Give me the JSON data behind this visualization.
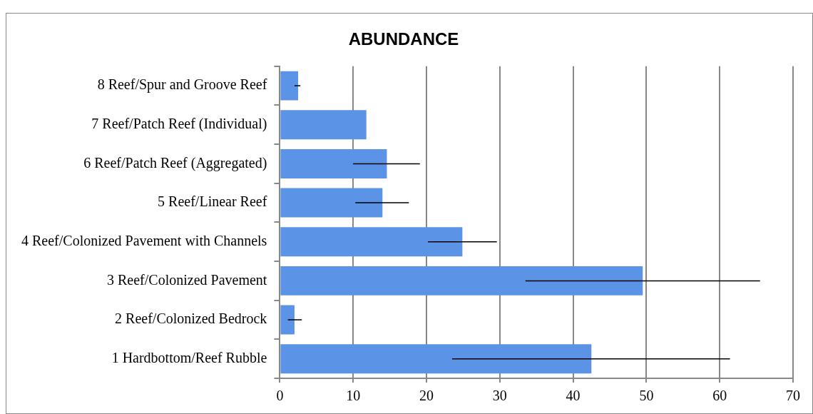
{
  "chart_data": {
    "type": "bar",
    "orientation": "horizontal",
    "title": "ABUNDANCE",
    "categories": [
      "8 Reef/Spur and Groove Reef",
      "7 Reef/Patch Reef (Individual)",
      "6 Reef/Patch Reef (Aggregated)",
      "5 Reef/Linear Reef",
      "4 Reef/Colonized Pavement with Channels",
      "3 Reef/Colonized Pavement",
      "2 Reef/Colonized Bedrock",
      "1 Hardbottom/Reef Rubble"
    ],
    "values": [
      2.5,
      11.8,
      14.6,
      14.0,
      24.9,
      49.5,
      2.0,
      42.5
    ],
    "errors": [
      [
        2.0,
        2.8
      ],
      null,
      [
        10.0,
        19.1
      ],
      [
        10.3,
        17.6
      ],
      [
        20.2,
        29.6
      ],
      [
        33.5,
        65.5
      ],
      [
        1.1,
        3.0
      ],
      [
        23.5,
        61.4
      ]
    ],
    "color": "#5b93e6",
    "xlim": [
      0,
      70
    ],
    "xticks": [
      0,
      10,
      20,
      30,
      40,
      50,
      60,
      70
    ],
    "grid": "x",
    "legend": false
  }
}
